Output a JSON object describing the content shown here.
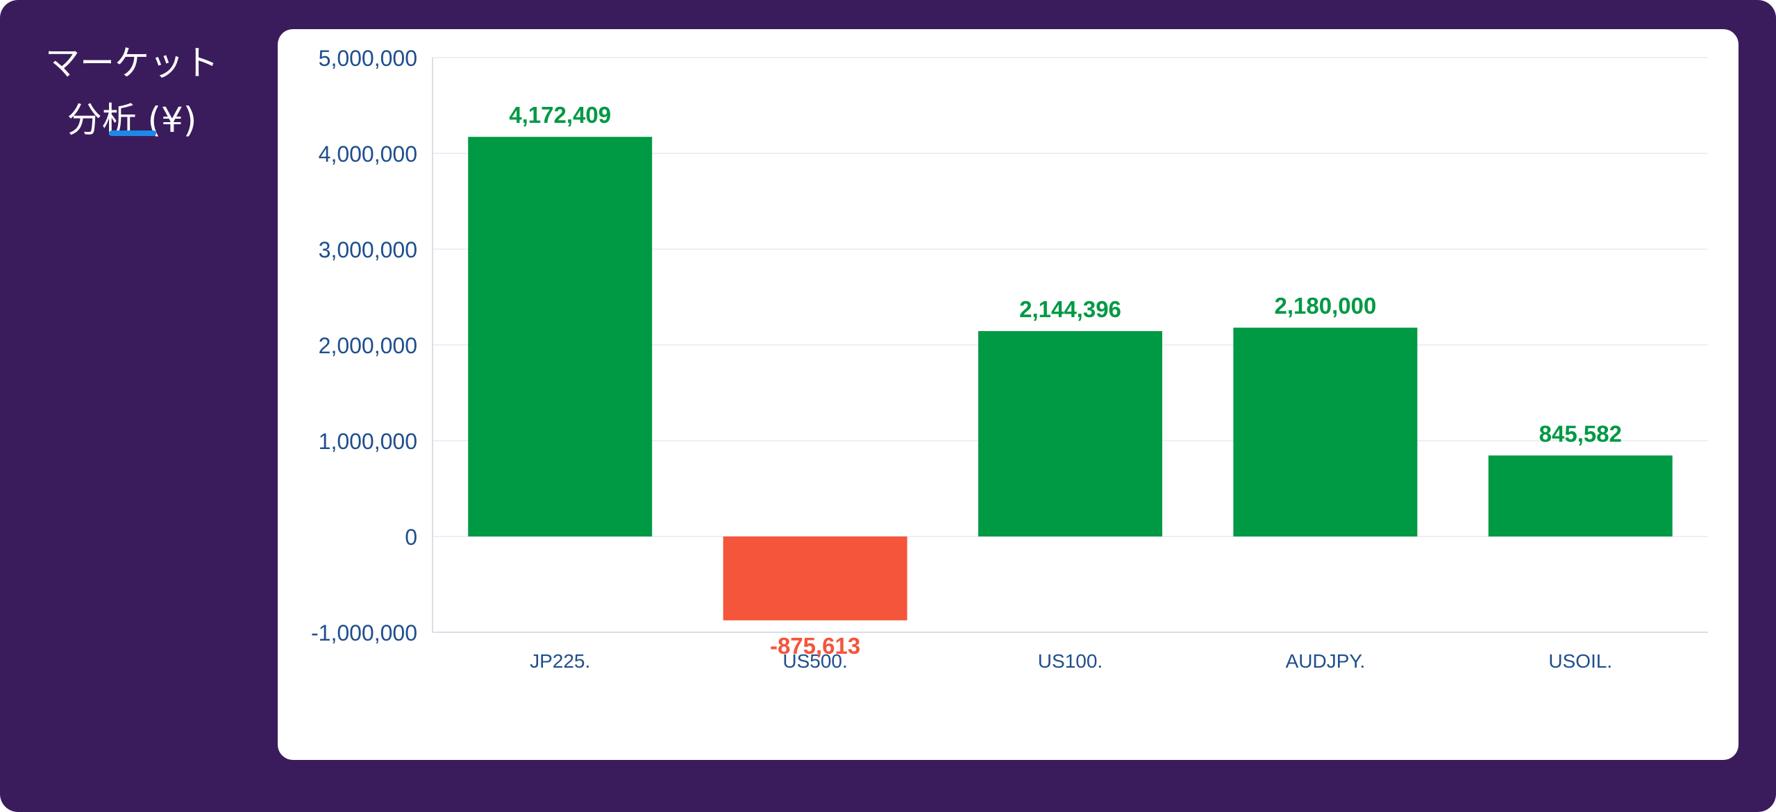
{
  "sidebar": {
    "title": "マーケット\n分析 (¥)"
  },
  "colors": {
    "background": "#3a1c5c",
    "card": "#ffffff",
    "positive": "#009944",
    "negative": "#f4553b",
    "axis_text": "#1f4e8c",
    "grid": "#e6eaf0",
    "accent": "#1e88e5"
  },
  "chart_data": {
    "type": "bar",
    "categories": [
      "JP225.",
      "US500.",
      "US100.",
      "AUDJPY.",
      "USOIL."
    ],
    "values": [
      4172409,
      -875613,
      2144396,
      2180000,
      845582
    ],
    "value_labels": [
      "4,172,409",
      "-875,613",
      "2,144,396",
      "2,180,000",
      "845,582"
    ],
    "yticks": [
      -1000000,
      0,
      1000000,
      2000000,
      3000000,
      4000000,
      5000000
    ],
    "ytick_labels": [
      "-1,000,000",
      "0",
      "1,000,000",
      "2,000,000",
      "3,000,000",
      "4,000,000",
      "5,000,000"
    ],
    "ylim": [
      -1000000,
      5000000
    ],
    "grid": true,
    "title": "",
    "xlabel": "",
    "ylabel": ""
  }
}
